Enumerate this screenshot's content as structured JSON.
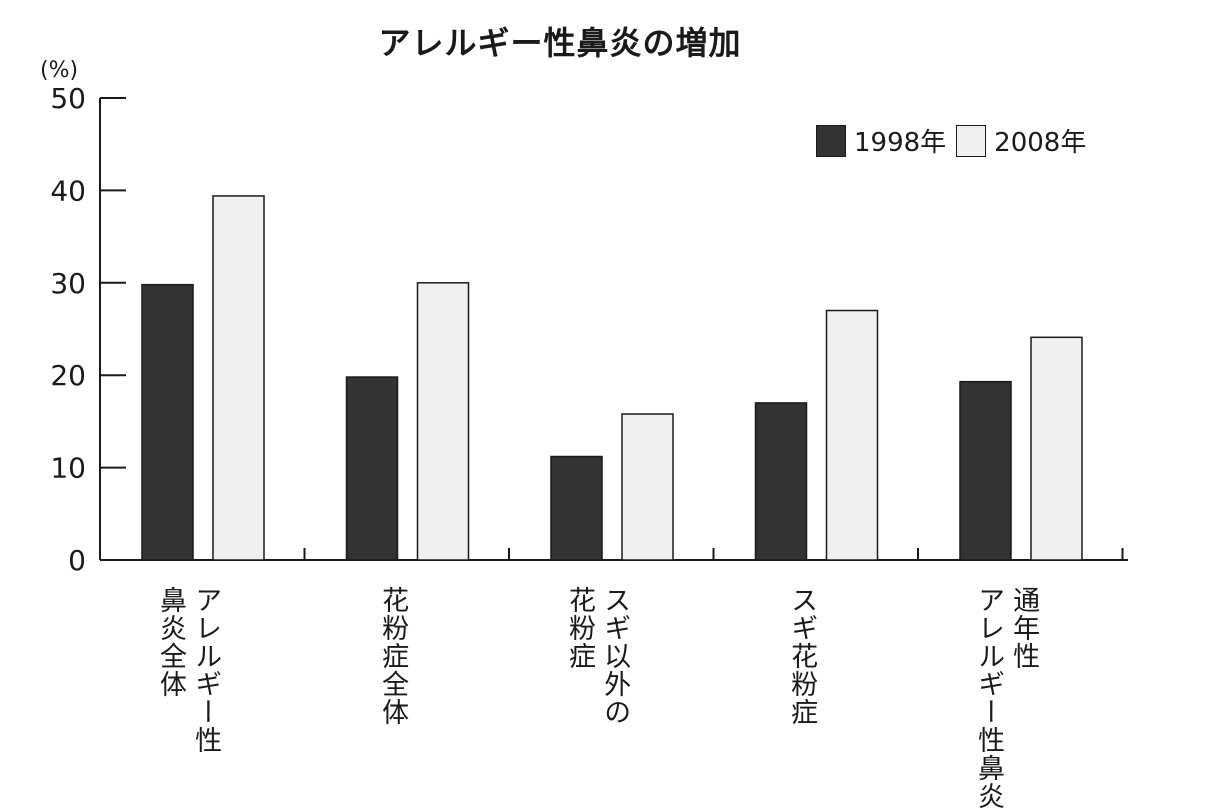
{
  "chart_data": {
    "type": "bar",
    "title": "アレルギー性鼻炎の増加",
    "ylabel": "(%)",
    "xlabel": "",
    "ylim": [
      0,
      50
    ],
    "yticks": [
      "0",
      "10",
      "20",
      "30",
      "40",
      "50"
    ],
    "categories": [
      {
        "lines": [
          "アレルギー性",
          "鼻炎全体"
        ]
      },
      {
        "lines": [
          "花粉症全体"
        ]
      },
      {
        "lines": [
          "スギ以外の",
          "花粉症"
        ]
      },
      {
        "lines": [
          "スギ花粉症"
        ]
      },
      {
        "lines": [
          "通年性",
          "アレルギー性鼻炎"
        ]
      }
    ],
    "series": [
      {
        "name": "1998年",
        "color": "#333333",
        "values": [
          29.8,
          19.8,
          11.2,
          17.0,
          19.3
        ]
      },
      {
        "name": "2008年",
        "color": "#f0f0f0",
        "values": [
          39.4,
          30.0,
          15.8,
          27.0,
          24.1
        ]
      }
    ],
    "legend_position": "top-right",
    "grid": false
  }
}
